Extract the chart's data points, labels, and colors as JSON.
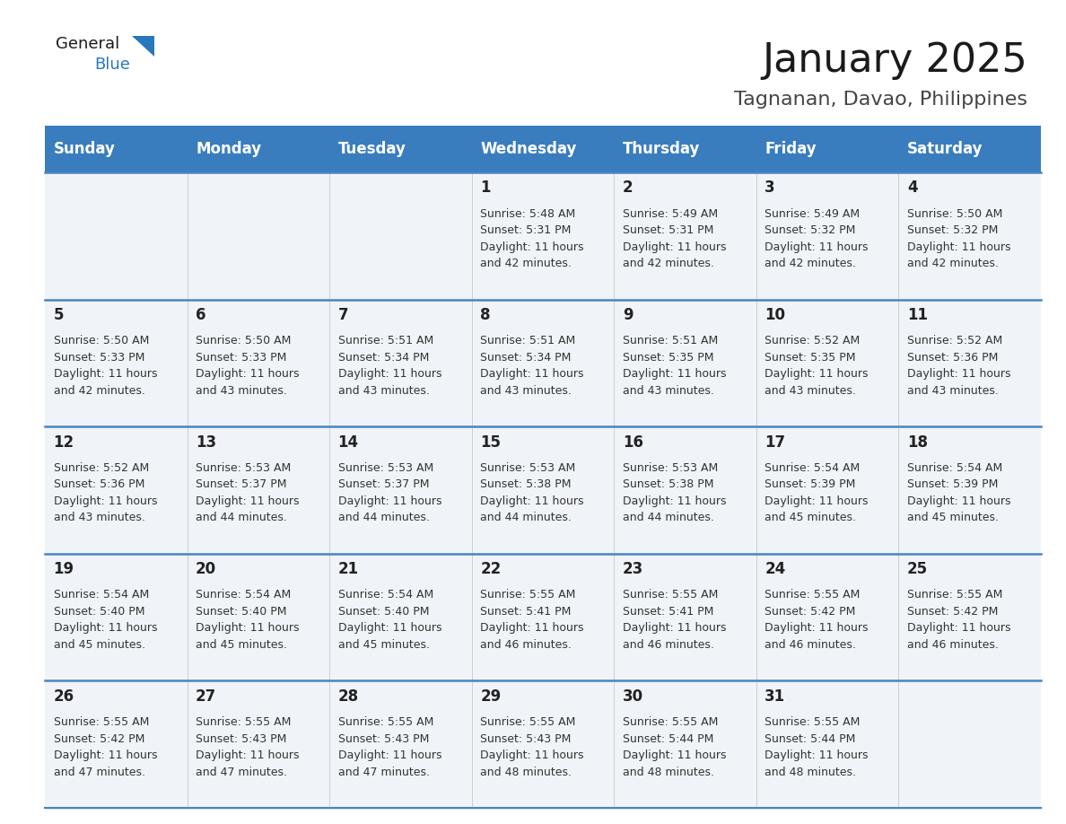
{
  "title": "January 2025",
  "subtitle": "Tagnanan, Davao, Philippines",
  "days_of_week": [
    "Sunday",
    "Monday",
    "Tuesday",
    "Wednesday",
    "Thursday",
    "Friday",
    "Saturday"
  ],
  "header_bg": "#3a7dbf",
  "header_text": "#ffffff",
  "row_bg": "#f0f4f8",
  "cell_text": "#333333",
  "day_number_color": "#222222",
  "divider_color": "#4a85c0",
  "calendar": [
    [
      {
        "day": null,
        "info": null
      },
      {
        "day": null,
        "info": null
      },
      {
        "day": null,
        "info": null
      },
      {
        "day": 1,
        "info": "Sunrise: 5:48 AM\nSunset: 5:31 PM\nDaylight: 11 hours\nand 42 minutes."
      },
      {
        "day": 2,
        "info": "Sunrise: 5:49 AM\nSunset: 5:31 PM\nDaylight: 11 hours\nand 42 minutes."
      },
      {
        "day": 3,
        "info": "Sunrise: 5:49 AM\nSunset: 5:32 PM\nDaylight: 11 hours\nand 42 minutes."
      },
      {
        "day": 4,
        "info": "Sunrise: 5:50 AM\nSunset: 5:32 PM\nDaylight: 11 hours\nand 42 minutes."
      }
    ],
    [
      {
        "day": 5,
        "info": "Sunrise: 5:50 AM\nSunset: 5:33 PM\nDaylight: 11 hours\nand 42 minutes."
      },
      {
        "day": 6,
        "info": "Sunrise: 5:50 AM\nSunset: 5:33 PM\nDaylight: 11 hours\nand 43 minutes."
      },
      {
        "day": 7,
        "info": "Sunrise: 5:51 AM\nSunset: 5:34 PM\nDaylight: 11 hours\nand 43 minutes."
      },
      {
        "day": 8,
        "info": "Sunrise: 5:51 AM\nSunset: 5:34 PM\nDaylight: 11 hours\nand 43 minutes."
      },
      {
        "day": 9,
        "info": "Sunrise: 5:51 AM\nSunset: 5:35 PM\nDaylight: 11 hours\nand 43 minutes."
      },
      {
        "day": 10,
        "info": "Sunrise: 5:52 AM\nSunset: 5:35 PM\nDaylight: 11 hours\nand 43 minutes."
      },
      {
        "day": 11,
        "info": "Sunrise: 5:52 AM\nSunset: 5:36 PM\nDaylight: 11 hours\nand 43 minutes."
      }
    ],
    [
      {
        "day": 12,
        "info": "Sunrise: 5:52 AM\nSunset: 5:36 PM\nDaylight: 11 hours\nand 43 minutes."
      },
      {
        "day": 13,
        "info": "Sunrise: 5:53 AM\nSunset: 5:37 PM\nDaylight: 11 hours\nand 44 minutes."
      },
      {
        "day": 14,
        "info": "Sunrise: 5:53 AM\nSunset: 5:37 PM\nDaylight: 11 hours\nand 44 minutes."
      },
      {
        "day": 15,
        "info": "Sunrise: 5:53 AM\nSunset: 5:38 PM\nDaylight: 11 hours\nand 44 minutes."
      },
      {
        "day": 16,
        "info": "Sunrise: 5:53 AM\nSunset: 5:38 PM\nDaylight: 11 hours\nand 44 minutes."
      },
      {
        "day": 17,
        "info": "Sunrise: 5:54 AM\nSunset: 5:39 PM\nDaylight: 11 hours\nand 45 minutes."
      },
      {
        "day": 18,
        "info": "Sunrise: 5:54 AM\nSunset: 5:39 PM\nDaylight: 11 hours\nand 45 minutes."
      }
    ],
    [
      {
        "day": 19,
        "info": "Sunrise: 5:54 AM\nSunset: 5:40 PM\nDaylight: 11 hours\nand 45 minutes."
      },
      {
        "day": 20,
        "info": "Sunrise: 5:54 AM\nSunset: 5:40 PM\nDaylight: 11 hours\nand 45 minutes."
      },
      {
        "day": 21,
        "info": "Sunrise: 5:54 AM\nSunset: 5:40 PM\nDaylight: 11 hours\nand 45 minutes."
      },
      {
        "day": 22,
        "info": "Sunrise: 5:55 AM\nSunset: 5:41 PM\nDaylight: 11 hours\nand 46 minutes."
      },
      {
        "day": 23,
        "info": "Sunrise: 5:55 AM\nSunset: 5:41 PM\nDaylight: 11 hours\nand 46 minutes."
      },
      {
        "day": 24,
        "info": "Sunrise: 5:55 AM\nSunset: 5:42 PM\nDaylight: 11 hours\nand 46 minutes."
      },
      {
        "day": 25,
        "info": "Sunrise: 5:55 AM\nSunset: 5:42 PM\nDaylight: 11 hours\nand 46 minutes."
      }
    ],
    [
      {
        "day": 26,
        "info": "Sunrise: 5:55 AM\nSunset: 5:42 PM\nDaylight: 11 hours\nand 47 minutes."
      },
      {
        "day": 27,
        "info": "Sunrise: 5:55 AM\nSunset: 5:43 PM\nDaylight: 11 hours\nand 47 minutes."
      },
      {
        "day": 28,
        "info": "Sunrise: 5:55 AM\nSunset: 5:43 PM\nDaylight: 11 hours\nand 47 minutes."
      },
      {
        "day": 29,
        "info": "Sunrise: 5:55 AM\nSunset: 5:43 PM\nDaylight: 11 hours\nand 48 minutes."
      },
      {
        "day": 30,
        "info": "Sunrise: 5:55 AM\nSunset: 5:44 PM\nDaylight: 11 hours\nand 48 minutes."
      },
      {
        "day": 31,
        "info": "Sunrise: 5:55 AM\nSunset: 5:44 PM\nDaylight: 11 hours\nand 48 minutes."
      },
      {
        "day": null,
        "info": null
      }
    ]
  ],
  "logo_general_color": "#1a1a1a",
  "logo_blue_color": "#2878be",
  "title_fontsize": 32,
  "subtitle_fontsize": 16,
  "header_fontsize": 12,
  "day_number_fontsize": 12,
  "info_fontsize": 9.0
}
